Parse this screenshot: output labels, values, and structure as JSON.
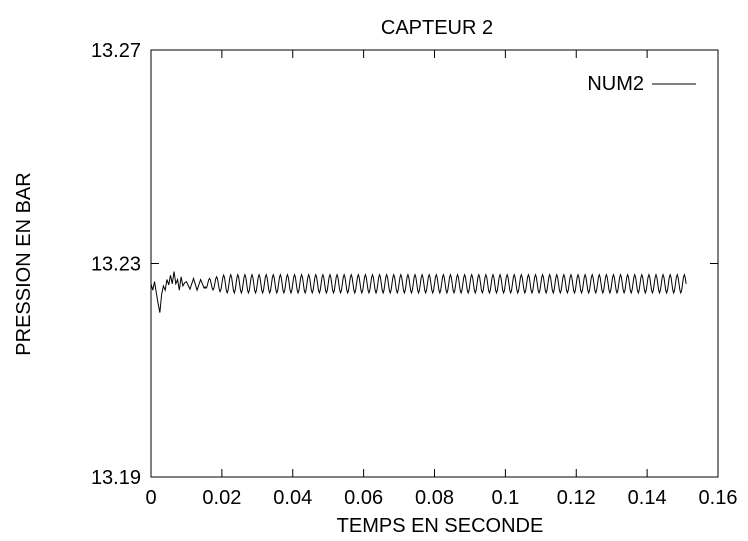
{
  "chart_data": {
    "type": "line",
    "title": "CAPTEUR 2",
    "xlabel": "TEMPS EN SECONDE",
    "ylabel": "PRESSION EN BAR",
    "xlim": [
      0,
      0.16
    ],
    "ylim": [
      13.19,
      13.27
    ],
    "xticks": [
      0,
      0.02,
      0.04,
      0.06,
      0.08,
      0.1,
      0.12,
      0.14,
      0.16
    ],
    "xtick_labels": [
      "0",
      "0.02",
      "0.04",
      "0.06",
      "0.08",
      "0.1",
      "0.12",
      "0.14",
      "0.16"
    ],
    "yticks": [
      13.19,
      13.23,
      13.27
    ],
    "ytick_labels": [
      "13.19",
      "13.23",
      "13.27"
    ],
    "grid": false,
    "legend_position": "top-right",
    "series": [
      {
        "name": "NUM2",
        "color": "#000000",
        "t_start": 0,
        "t_end": 0.151,
        "steady_mean": 13.2262,
        "steady_amplitude": 0.0017,
        "oscillation_frequency_hz": 500,
        "initial_transient": [
          [
            0.0,
            13.2262
          ],
          [
            0.0005,
            13.225
          ],
          [
            0.001,
            13.2266
          ],
          [
            0.0015,
            13.2245
          ],
          [
            0.002,
            13.2225
          ],
          [
            0.0025,
            13.2208
          ],
          [
            0.003,
            13.2242
          ],
          [
            0.0035,
            13.2258
          ],
          [
            0.004,
            13.225
          ],
          [
            0.0045,
            13.227
          ],
          [
            0.005,
            13.226
          ],
          [
            0.0055,
            13.2278
          ],
          [
            0.006,
            13.2262
          ],
          [
            0.0065,
            13.2285
          ],
          [
            0.007,
            13.2262
          ],
          [
            0.0075,
            13.227
          ],
          [
            0.008,
            13.225
          ],
          [
            0.0085,
            13.2275
          ],
          [
            0.009,
            13.2258
          ],
          [
            0.0095,
            13.2264
          ],
          [
            0.01,
            13.2266
          ],
          [
            0.011,
            13.2252
          ],
          [
            0.012,
            13.2272
          ],
          [
            0.013,
            13.225
          ],
          [
            0.014,
            13.227
          ],
          [
            0.015,
            13.2254
          ]
        ]
      }
    ]
  }
}
